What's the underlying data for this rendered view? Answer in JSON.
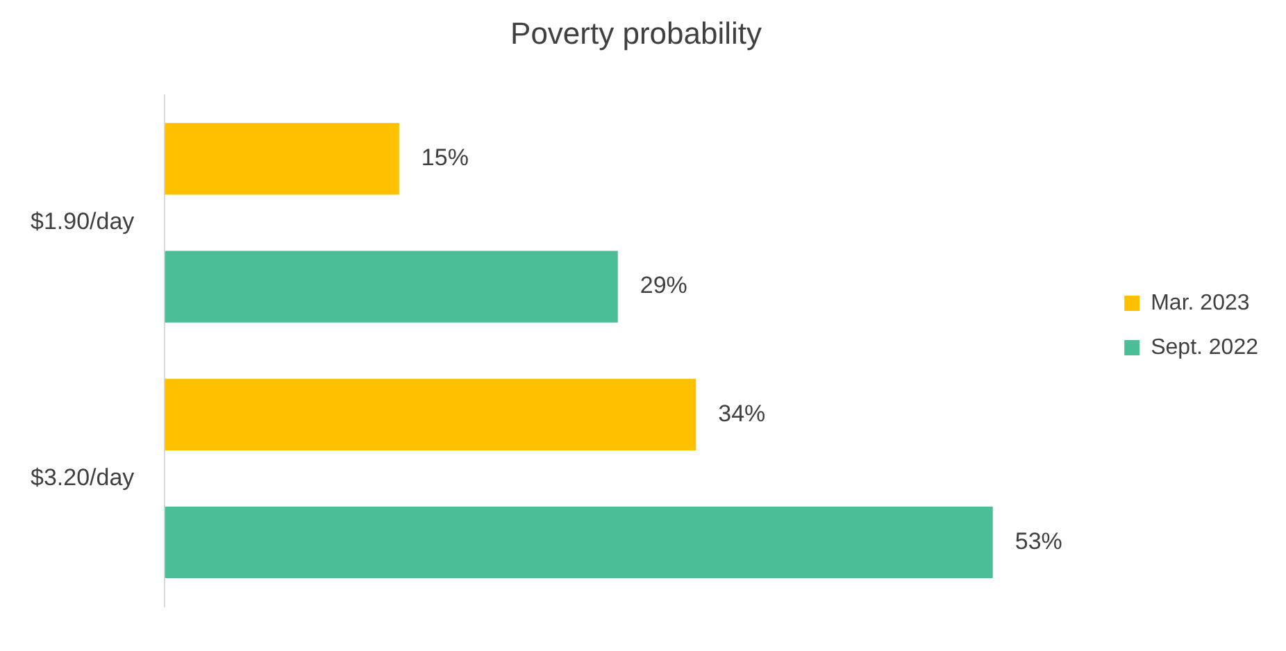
{
  "chart_data": {
    "type": "bar",
    "orientation": "horizontal",
    "title": "Poverty probability",
    "categories": [
      "$1.90/day",
      "$3.20/day"
    ],
    "series": [
      {
        "name": "Mar. 2023",
        "color": "#ffc000",
        "values": [
          15,
          34
        ],
        "value_labels": [
          "15%",
          "34%"
        ]
      },
      {
        "name": "Sept. 2022",
        "color": "#4bbd97",
        "values": [
          29,
          53
        ],
        "value_labels": [
          "29%",
          "53%"
        ]
      }
    ],
    "tick_labels": "y",
    "grid": false,
    "legend": "right"
  }
}
